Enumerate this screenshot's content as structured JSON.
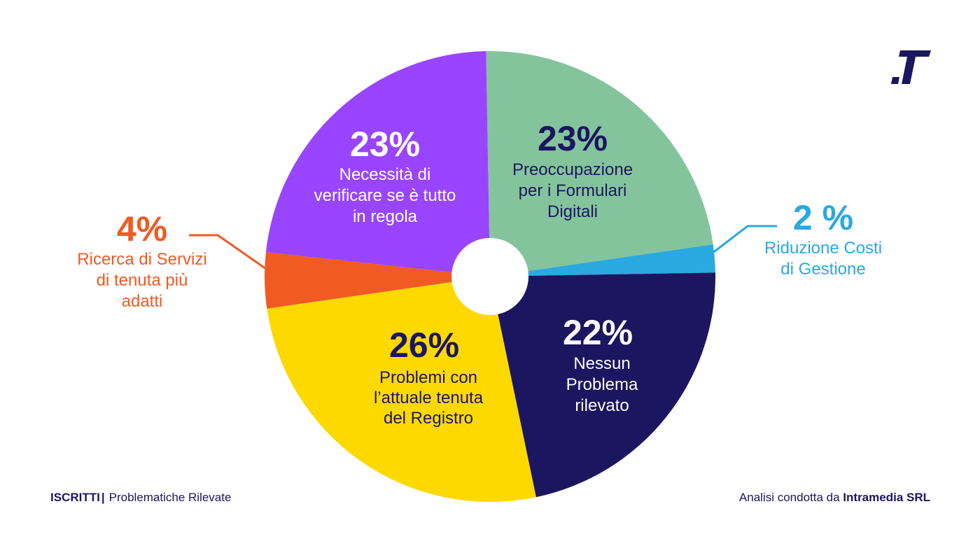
{
  "chart_data": {
    "type": "pie",
    "title": "",
    "slices": [
      {
        "key": "formulari",
        "value": 23,
        "pct_label": "23%",
        "label_lines": [
          "Preoccupazione",
          "per i Formulari",
          "Digitali"
        ],
        "color": "#84c49c",
        "pct_color": "#1b1660",
        "text_color": "#1b1660"
      },
      {
        "key": "costi",
        "value": 2,
        "pct_label": "2 %",
        "label_lines": [
          "Riduzione Costi",
          "di Gestione"
        ],
        "color": "#2aa9e1",
        "pct_color": "#2aa9e1",
        "text_color": "#2aa9e1"
      },
      {
        "key": "nessun-problema",
        "value": 22,
        "pct_label": "22%",
        "label_lines": [
          "Nessun",
          "Problema",
          "rilevato"
        ],
        "color": "#1c1560",
        "pct_color": "#ffffff",
        "text_color": "#ffffff"
      },
      {
        "key": "registro",
        "value": 26,
        "pct_label": "26%",
        "label_lines": [
          "Problemi con",
          "l’attuale tenuta",
          "del Registro"
        ],
        "color": "#fdd900",
        "pct_color": "#1b1660",
        "text_color": "#1b1660"
      },
      {
        "key": "servizi",
        "value": 4,
        "pct_label": "4%",
        "label_lines": [
          "Ricerca di Servizi",
          "di tenuta più",
          "adatti"
        ],
        "color": "#f15a22",
        "pct_color": "#f15a22",
        "text_color": "#f15a22"
      },
      {
        "key": "verificare",
        "value": 23,
        "pct_label": "23%",
        "label_lines": [
          "Necessità di",
          "verificare se è tutto",
          "in regola"
        ],
        "color": "#9945ff",
        "pct_color": "#ffffff",
        "text_color": "#ffffff"
      }
    ],
    "legend": "none"
  },
  "footer": {
    "section": "ISCRITTI",
    "separator": "|",
    "subtitle": "Problematiche Rilevate",
    "credit_prefix": "Analisi condotta da",
    "credit_company": "Intramedia SRL"
  },
  "logo": {
    "icon": "T-brand-logo-icon",
    "color": "#1b1660"
  }
}
